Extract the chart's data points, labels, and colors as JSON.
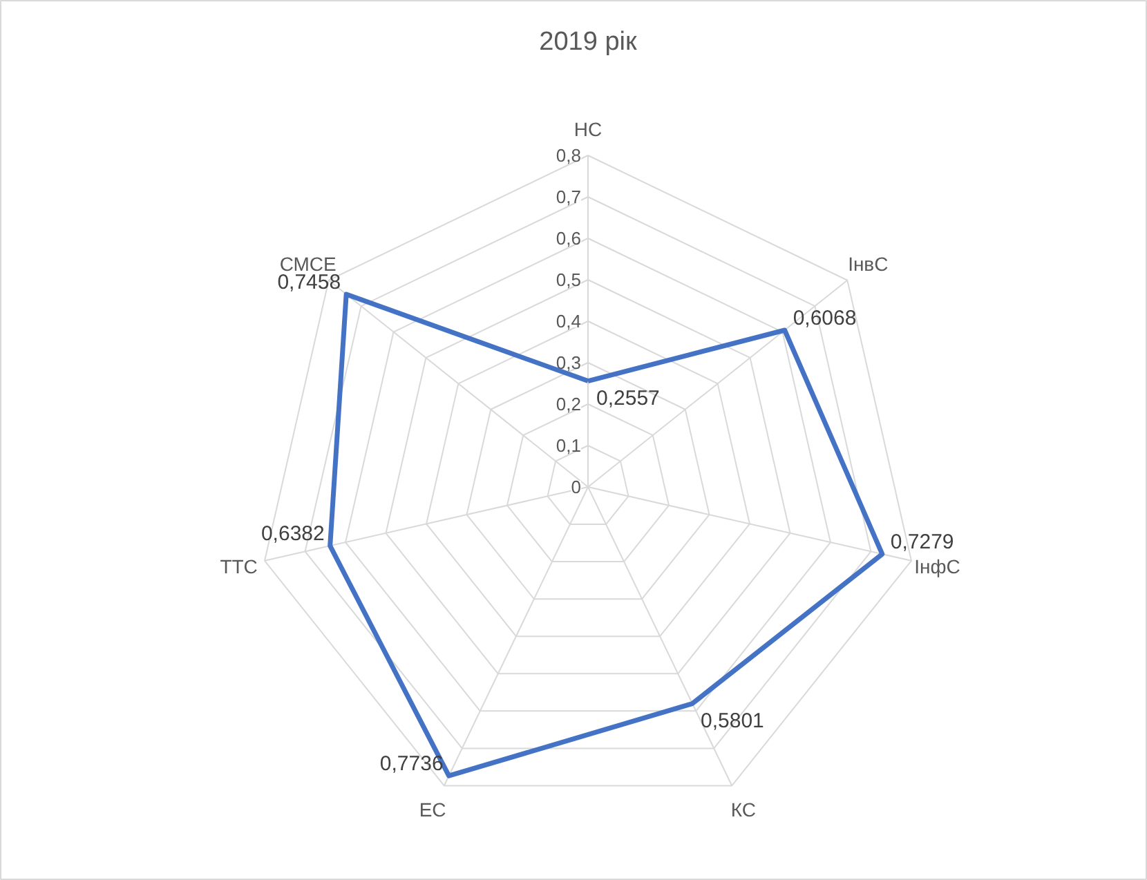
{
  "chart_data": {
    "type": "radar",
    "title": "2019 рік",
    "categories": [
      "НС",
      "ІнвС",
      "ІнфС",
      "КС",
      "ЕС",
      "ТТС",
      "СМСЕ"
    ],
    "series": [
      {
        "color": "#4472c4",
        "values": [
          0.2557,
          0.6068,
          0.7279,
          0.5801,
          0.7736,
          0.6382,
          0.7458
        ],
        "value_labels": [
          "0,2557",
          "0,6068",
          "0,7279",
          "0,5801",
          "0,7736",
          "0,6382",
          "0,7458"
        ]
      }
    ],
    "ylim": [
      0,
      0.8
    ],
    "yticks": [
      {
        "value": 0,
        "label": "0"
      },
      {
        "value": 0.1,
        "label": "0,1"
      },
      {
        "value": 0.2,
        "label": "0,2"
      },
      {
        "value": 0.3,
        "label": "0,3"
      },
      {
        "value": 0.4,
        "label": "0,4"
      },
      {
        "value": 0.5,
        "label": "0,5"
      },
      {
        "value": 0.6,
        "label": "0,6"
      },
      {
        "value": 0.7,
        "label": "0,7"
      },
      {
        "value": 0.8,
        "label": "0,8"
      }
    ],
    "grid": true,
    "line_style": "solid"
  }
}
